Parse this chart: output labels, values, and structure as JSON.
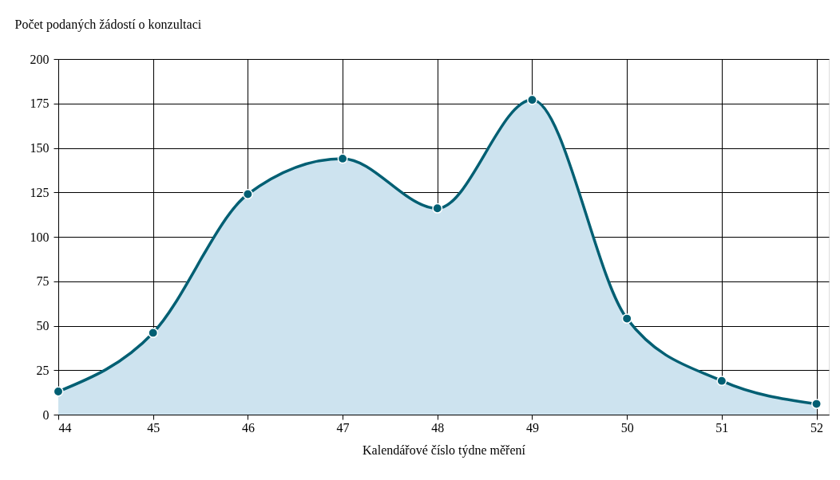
{
  "chart_data": {
    "type": "area",
    "xlabel": "Kalendářové číslo týdne měření",
    "ylabel": "Počet podaných žádostí o konzultaci",
    "x": [
      44,
      45,
      46,
      47,
      48,
      49,
      50,
      51,
      52
    ],
    "series": [
      {
        "color": "#005f73",
        "values": [
          13,
          46,
          124,
          144,
          116,
          177,
          54,
          19,
          6
        ]
      }
    ],
    "xlim": [
      44,
      52.13
    ],
    "xticks": [
      44,
      45,
      46,
      47,
      48,
      49,
      50,
      51,
      52
    ],
    "ylim": [
      0,
      200
    ],
    "yticks": [
      0,
      25,
      50,
      75,
      100,
      125,
      150,
      175,
      200
    ],
    "grid": true,
    "marker": "circle"
  }
}
